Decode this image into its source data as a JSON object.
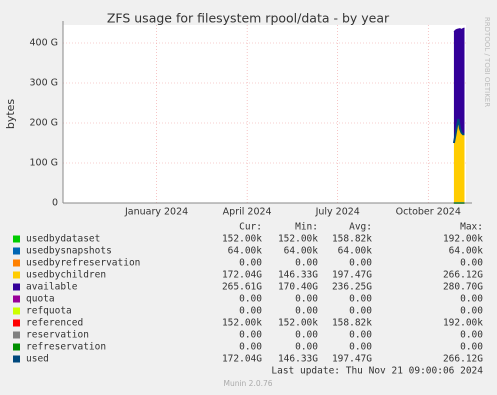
{
  "chart_data": {
    "type": "area",
    "title": "ZFS usage for filesystem rpool/data - by year",
    "ylabel": "bytes",
    "side_note": "RRDTOOL / TOBI OETIKER",
    "ylim": [
      0,
      445
    ],
    "yticks": [
      0,
      {
        "value": 100,
        "label": "100 G"
      },
      {
        "value": 200,
        "label": "200 G"
      },
      {
        "value": 300,
        "label": "300 G"
      },
      {
        "value": 400,
        "label": "400 G"
      }
    ],
    "xlim": [
      -2.1,
      11.25
    ],
    "xticks": [
      {
        "value": 1,
        "label": "January 2024"
      },
      {
        "value": 4,
        "label": "April 2024"
      },
      {
        "value": 7,
        "label": "July 2024"
      },
      {
        "value": 10,
        "label": "October 2024"
      }
    ],
    "grid": true,
    "x": [
      10.85,
      10.9,
      10.95,
      11.0,
      11.05,
      11.1,
      11.15,
      11.2
    ],
    "stat_headers": [
      "Cur:",
      "Min:",
      "Avg:",
      "Max:"
    ],
    "series": [
      {
        "name": "usedbydataset",
        "color": "#00cc00",
        "mode": "stack",
        "values": [
          0.00015,
          0.00015,
          0.00015,
          0.00015,
          0.00015,
          0.00015,
          0.00015,
          0.00015
        ],
        "stats": [
          "152.00k",
          "152.00k",
          "158.82k",
          "192.00k"
        ]
      },
      {
        "name": "usedbysnapshots",
        "color": "#0066b3",
        "mode": "stack",
        "values": [
          6e-05,
          6e-05,
          6e-05,
          6e-05,
          6e-05,
          6e-05,
          6e-05,
          6e-05
        ],
        "stats": [
          "64.00k",
          "64.00k",
          "64.00k",
          "64.00k"
        ]
      },
      {
        "name": "usedbyrefreservation",
        "color": "#ff8000",
        "mode": "stack",
        "values": [
          0,
          0,
          0,
          0,
          0,
          0,
          0,
          0
        ],
        "stats": [
          "0.00",
          "0.00",
          "0.00",
          "0.00"
        ]
      },
      {
        "name": "usedbychildren",
        "color": "#ffcc00",
        "mode": "stack",
        "values": [
          150,
          170,
          192,
          210,
          186,
          176,
          172,
          172
        ],
        "stats": [
          "172.04G",
          "146.33G",
          "197.47G",
          "266.12G"
        ]
      },
      {
        "name": "available",
        "color": "#330099",
        "mode": "stack",
        "values": [
          278,
          262,
          242,
          225,
          250,
          258,
          264,
          265.6
        ],
        "stats": [
          "265.61G",
          "170.40G",
          "236.25G",
          "280.70G"
        ]
      },
      {
        "name": "quota",
        "color": "#990099",
        "mode": "line",
        "values": [
          0,
          0,
          0,
          0,
          0,
          0,
          0,
          0
        ],
        "stats": [
          "0.00",
          "0.00",
          "0.00",
          "0.00"
        ]
      },
      {
        "name": "refquota",
        "color": "#ccff00",
        "mode": "line",
        "values": [
          0,
          0,
          0,
          0,
          0,
          0,
          0,
          0
        ],
        "stats": [
          "0.00",
          "0.00",
          "0.00",
          "0.00"
        ]
      },
      {
        "name": "referenced",
        "color": "#ff0000",
        "mode": "line",
        "values": [
          0.00015,
          0.00015,
          0.00015,
          0.00015,
          0.00015,
          0.00015,
          0.00015,
          0.00015
        ],
        "stats": [
          "152.00k",
          "152.00k",
          "158.82k",
          "192.00k"
        ]
      },
      {
        "name": "reservation",
        "color": "#808080",
        "mode": "line",
        "values": [
          0,
          0,
          0,
          0,
          0,
          0,
          0,
          0
        ],
        "stats": [
          "0.00",
          "0.00",
          "0.00",
          "0.00"
        ]
      },
      {
        "name": "refreservation",
        "color": "#008f00",
        "mode": "line",
        "values": [
          0,
          0,
          0,
          0,
          0,
          0,
          0,
          0
        ],
        "stats": [
          "0.00",
          "0.00",
          "0.00",
          "0.00"
        ]
      },
      {
        "name": "used",
        "color": "#00487d",
        "mode": "line",
        "values": [
          150,
          170,
          192,
          210,
          186,
          176,
          172,
          172
        ],
        "stats": [
          "172.04G",
          "146.33G",
          "197.47G",
          "266.12G"
        ]
      }
    ],
    "last_update": "Last update: Thu Nov 21 09:00:06 2024",
    "footer": "Munin 2.0.76"
  }
}
